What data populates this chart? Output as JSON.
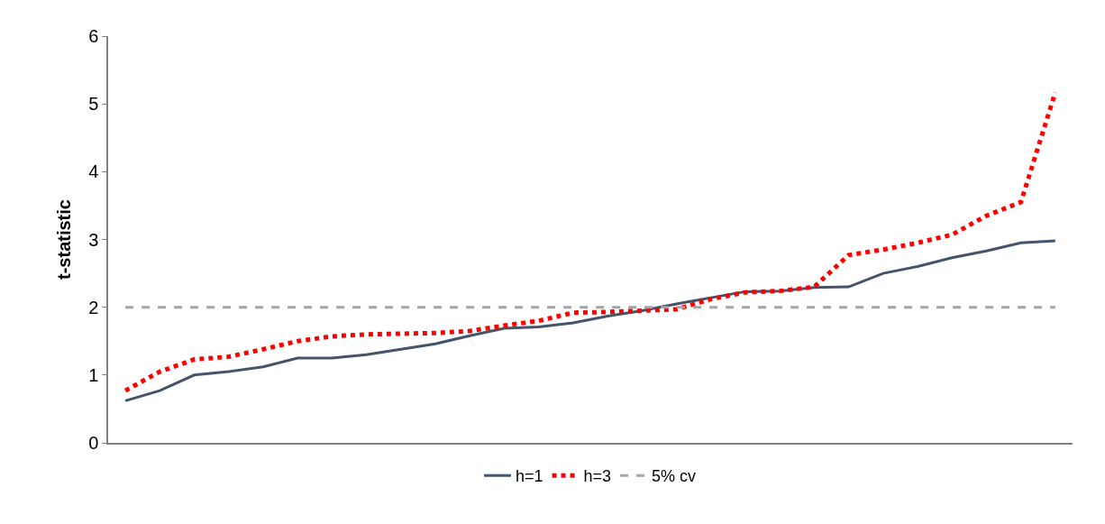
{
  "chart_data": {
    "type": "line",
    "ylabel": "t-statistic",
    "categories": [
      null,
      null,
      null,
      null,
      null,
      null,
      null,
      null,
      null,
      null,
      null,
      null,
      null,
      null,
      null,
      null,
      null,
      null,
      null,
      null,
      null,
      null,
      null,
      null,
      null,
      null,
      null,
      null
    ],
    "series": [
      {
        "name": "h=1",
        "color": "#44546a",
        "line_style": "solid",
        "values": [
          0.62,
          0.77,
          1.0,
          1.05,
          1.12,
          1.25,
          1.25,
          1.3,
          1.38,
          1.46,
          1.58,
          1.69,
          1.71,
          1.77,
          1.87,
          1.95,
          2.05,
          2.14,
          2.23,
          2.24,
          2.29,
          2.3,
          2.5,
          2.6,
          2.73,
          2.83,
          2.95,
          2.98
        ]
      },
      {
        "name": "h=3",
        "color": "#ff0000",
        "line_style": "dotted",
        "values": [
          0.77,
          1.05,
          1.23,
          1.27,
          1.38,
          1.5,
          1.57,
          1.6,
          1.61,
          1.62,
          1.65,
          1.73,
          1.8,
          1.92,
          1.93,
          1.95,
          1.97,
          2.12,
          2.22,
          2.24,
          2.3,
          2.77,
          2.85,
          2.95,
          3.07,
          3.35,
          3.55,
          5.17
        ]
      },
      {
        "name": "5% cv",
        "color": "#a5a5a5",
        "line_style": "dashed",
        "values": [
          2,
          2,
          2,
          2,
          2,
          2,
          2,
          2,
          2,
          2,
          2,
          2,
          2,
          2,
          2,
          2,
          2,
          2,
          2,
          2,
          2,
          2,
          2,
          2,
          2,
          2,
          2,
          2
        ]
      }
    ],
    "ylim": [
      0,
      6
    ],
    "yticks": [
      0,
      1,
      2,
      3,
      4,
      5,
      6
    ],
    "grid": false,
    "legend": "bottom",
    "marker": "none",
    "tick_labels": "y"
  }
}
